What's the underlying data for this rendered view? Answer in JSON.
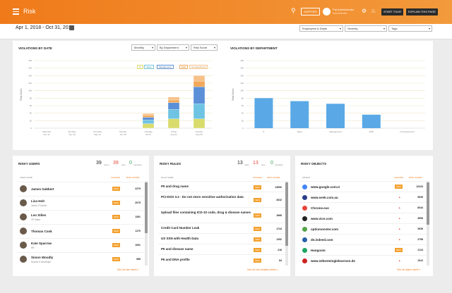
{
  "header": {
    "title": "Risk",
    "support_label": "SUPPORT",
    "user_name": "Pat Administrator",
    "user_role": "Administrator",
    "start_tour": "START TOUR",
    "explain": "EXPLAIN THIS PAGE"
  },
  "datebar": {
    "date_range": "Apr 1, 2018 - Oct 31, 2018",
    "filters": [
      "Employees & Depts",
      "Severity",
      "Tags"
    ]
  },
  "violations_by_date": {
    "title": "VIOLATIONS BY DATE",
    "controls": [
      "Monthly",
      "By Department",
      "Risk Score"
    ],
    "legend": [
      "IT",
      "Sales",
      "Management",
      "R&D",
      "No Department"
    ],
    "ylabel": "Risk Score",
    "ytick_labels": [
      "18k",
      "16k",
      "14k",
      "12k",
      "10k",
      "8k",
      "6k",
      "4k",
      "2k",
      "0"
    ],
    "x_labels": [
      [
        "Saturday",
        "Nov 11"
      ],
      [
        "Monday",
        "Apr 30"
      ],
      [
        "Thursday",
        "May 31"
      ],
      [
        "Sunday",
        "Jun 30"
      ],
      [
        "Tuesday",
        "Jul 31"
      ],
      [
        "Friday",
        "Aug 31"
      ],
      [
        "Sunday",
        "Sep 30"
      ]
    ]
  },
  "violations_by_dept": {
    "title": "VIOLATIONS BY DEPARTMENT",
    "ylabel": "Risk Score",
    "ytick_labels": [
      "18k",
      "16k",
      "14k",
      "12k",
      "10k",
      "8k",
      "6k",
      "4k",
      "2k",
      "0"
    ],
    "x_labels": [
      "IT",
      "Sales",
      "Management",
      "R&D",
      "No Department"
    ]
  },
  "chart_data": [
    {
      "type": "bar",
      "title": "VIOLATIONS BY DATE",
      "ylabel": "Risk Score",
      "categories": [
        "Nov 11",
        "Apr 30",
        "May 31",
        "Jun 30",
        "Jul 31",
        "Aug 31",
        "Sep 30"
      ],
      "ylim": [
        0,
        18000
      ],
      "series": [
        {
          "name": "IT",
          "values": [
            0,
            0,
            0,
            0,
            1200,
            2500,
            2500
          ]
        },
        {
          "name": "Sales",
          "values": [
            0,
            0,
            0,
            0,
            1000,
            2500,
            4000
          ]
        },
        {
          "name": "Management",
          "values": [
            0,
            0,
            0,
            0,
            700,
            1800,
            4500
          ]
        },
        {
          "name": "R&D",
          "values": [
            0,
            0,
            0,
            0,
            500,
            700,
            1500
          ]
        },
        {
          "name": "No Department",
          "values": [
            0,
            0,
            0,
            0,
            500,
            800,
            1500
          ]
        }
      ],
      "colors": [
        "#d9dc6c",
        "#6fc3e3",
        "#5b90d8",
        "#f3a85a",
        "#f6c28a"
      ]
    },
    {
      "type": "bar",
      "title": "VIOLATIONS BY DEPARTMENT",
      "ylabel": "Risk Score",
      "categories": [
        "IT",
        "Sales",
        "Management",
        "R&D",
        "No Department"
      ],
      "values": [
        8000,
        7200,
        6500,
        3600,
        0
      ],
      "ylim": [
        0,
        18000
      ],
      "color": "#5aa9e6"
    }
  ],
  "risky_users": {
    "title": "RISKY USERS",
    "count_total": "39",
    "count_total_label": "users",
    "count_new": "39",
    "count_new_label": "new",
    "count_resolved": "0",
    "count_resolved_label": "resolved",
    "col_left": "USER NAME",
    "col_change": "CHANGE",
    "col_score": "RISK SCORE",
    "rows": [
      {
        "name": "James Gabbert",
        "sub": "",
        "change": "NEW",
        "score": "2279"
      },
      {
        "name": "Lisa Holt",
        "sub": "Junior IT Admin",
        "change": "NEW",
        "score": "2075"
      },
      {
        "name": "Leo Stiles",
        "sub": "VP Sales",
        "change": "NEW",
        "score": "1391"
      },
      {
        "name": "Thomas Cook",
        "sub": "",
        "change": "NEW",
        "score": "1170"
      },
      {
        "name": "Kate Sparrow",
        "sub": "HR",
        "change": "NEW",
        "score": "1091"
      },
      {
        "name": "Simon Woodly",
        "sub": "Nuamo D developer",
        "change": "NEW",
        "score": "985"
      }
    ],
    "see_all": "See all user alerts »"
  },
  "risky_rules": {
    "title": "RISKY RULES",
    "count_total": "13",
    "count_total_label": "rules",
    "count_new": "13",
    "count_new_label": "new",
    "count_resolved": "0",
    "count_resolved_label": "resolved",
    "col_left": "RULE NAME",
    "col_change": "CHANGE",
    "col_score": "RISK SCORE",
    "rows": [
      {
        "name": "PII and drug name",
        "change": "NEW",
        "score": "13590"
      },
      {
        "name": "PCI-DSS 3.2 - Do not store sensitive authorization data",
        "change": "NEW",
        "score": "3032"
      },
      {
        "name": "Upload files containing ICD-10 code, drug & disease names",
        "change": "NEW",
        "score": "1668"
      },
      {
        "name": "Credit Card Number Leak",
        "change": "NEW",
        "score": "1744"
      },
      {
        "name": "US SSN with Health Data",
        "change": "NEW",
        "score": "1252"
      },
      {
        "name": "PII and disease name",
        "change": "NEW",
        "score": "216"
      },
      {
        "name": "PII and DNA profile",
        "change": "NEW",
        "score": "84"
      }
    ],
    "see_all": "See all rule violation alerts »"
  },
  "risky_objects": {
    "title": "RISKY OBJECTS",
    "col_left": "OBJECT",
    "col_change": "CHANGE",
    "col_score": "RISK SCORE",
    "rows": [
      {
        "name": "www.google.com.tr",
        "change": "NEW",
        "score": "12223",
        "color": "#4285f4"
      },
      {
        "name": "www.seek.com.au",
        "change": "▲",
        "score": "9939",
        "color": "#2a3e8c"
      },
      {
        "name": "Chrome.exe",
        "change": "▲",
        "score": "8344",
        "color": "#e8453c"
      },
      {
        "name": "www.vice.com",
        "change": "▲",
        "score": "3996",
        "color": "#222222"
      },
      {
        "name": "optinmonster.com",
        "change": "▲",
        "score": "3939",
        "color": "#56a34a"
      },
      {
        "name": "de.indeed.com",
        "change": "▲",
        "score": "2798",
        "color": "#2b5fa8"
      },
      {
        "name": "Hangouts",
        "change": "NEW",
        "score": "2113",
        "color": "#1fa463"
      },
      {
        "name": "www.10besteingleboersen.de",
        "change": "▲",
        "score": "1912",
        "color": "#c22"
      }
    ],
    "see_all": "See all object alerts »"
  }
}
